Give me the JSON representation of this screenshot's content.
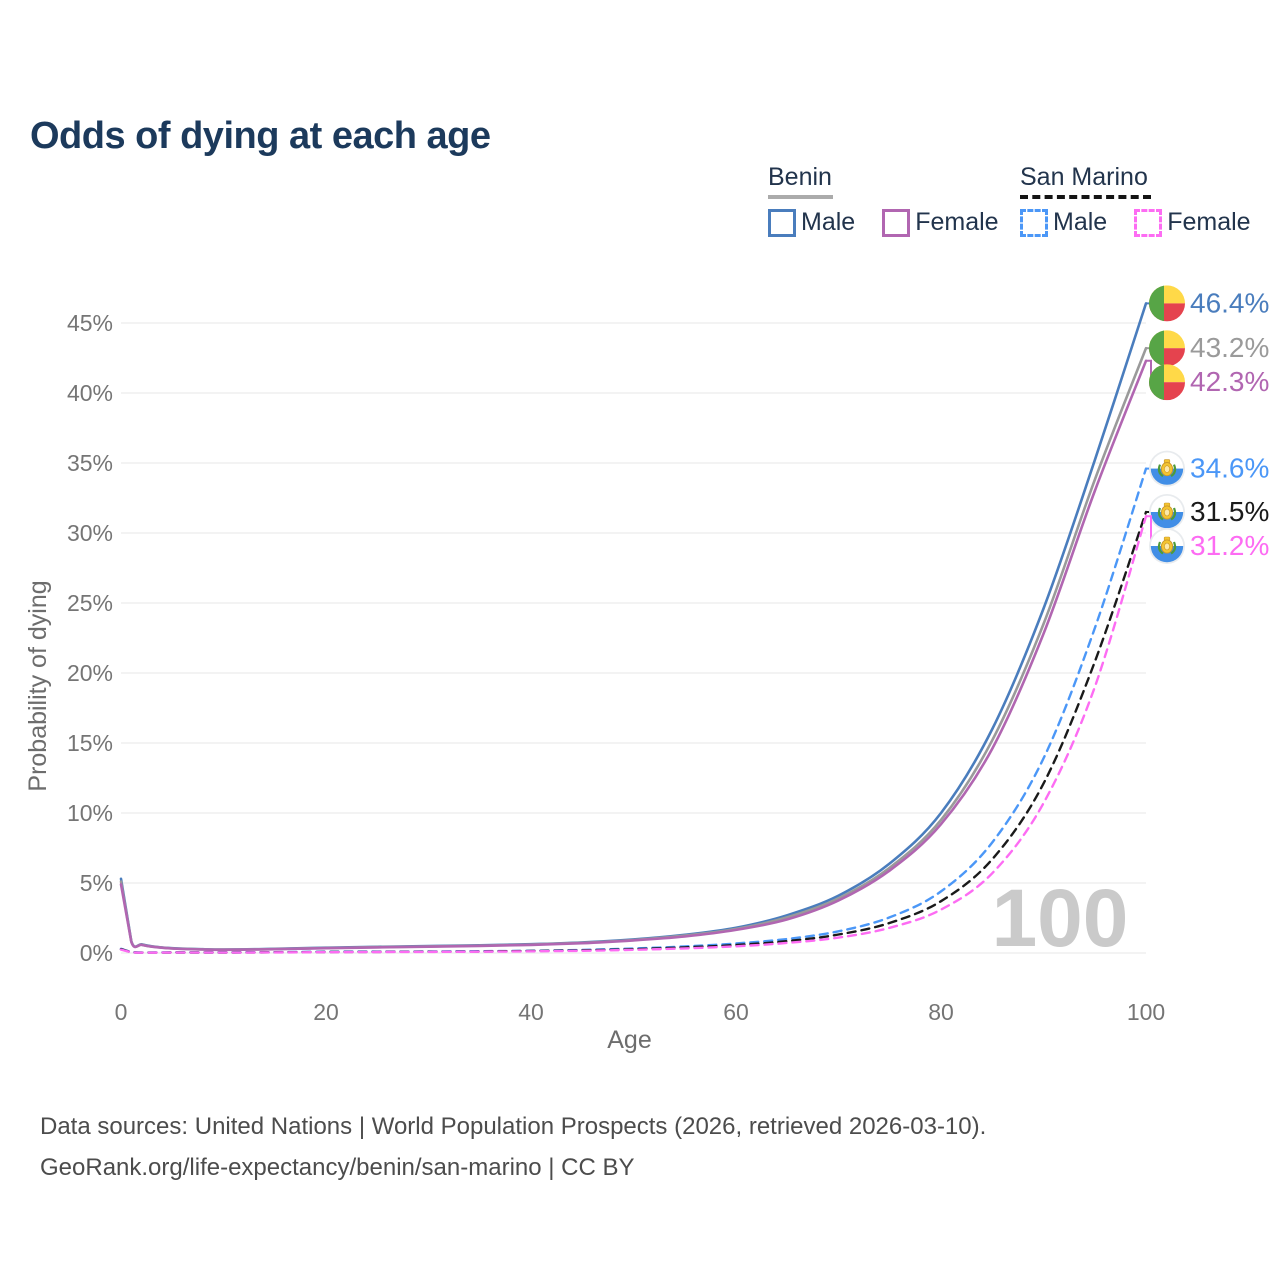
{
  "title": "Odds of dying at each age",
  "watermark_age": "100",
  "legend": {
    "groups": [
      {
        "name": "Benin",
        "line_style": "solid",
        "underline_color": "#ababab",
        "items": [
          {
            "label": "Male",
            "color": "#4a7dbd",
            "dashed": false
          },
          {
            "label": "Female",
            "color": "#b166b1",
            "dashed": false
          }
        ]
      },
      {
        "name": "San Marino",
        "line_style": "dashed",
        "underline_color": "#141414",
        "items": [
          {
            "label": "Male",
            "color": "#4b97f7",
            "dashed": true
          },
          {
            "label": "Female",
            "color": "#fd6cf3",
            "dashed": true
          }
        ]
      }
    ]
  },
  "chart_data": {
    "type": "line",
    "title": "Odds of dying at each age",
    "xlabel": "Age",
    "ylabel": "Probability of dying",
    "xlim": [
      0,
      100
    ],
    "ylim_pct": [
      0,
      47
    ],
    "x_ticks": [
      0,
      20,
      40,
      60,
      80,
      100
    ],
    "y_ticks_pct": [
      0,
      5,
      10,
      15,
      20,
      25,
      30,
      35,
      40,
      45
    ],
    "grid": "horizontal",
    "legend_position": "top-right",
    "hovered_x_value": "100",
    "series": [
      {
        "name": "Benin Male",
        "country": "Benin",
        "sex": "Male",
        "color": "#4a7dbd",
        "dash": false,
        "flag": "benin",
        "end_label": "46.4%",
        "points_pct": [
          [
            0,
            5.3
          ],
          [
            1,
            0.85
          ],
          [
            2,
            0.62
          ],
          [
            3,
            0.48
          ],
          [
            5,
            0.34
          ],
          [
            8,
            0.27
          ],
          [
            10,
            0.25
          ],
          [
            13,
            0.27
          ],
          [
            15,
            0.3
          ],
          [
            20,
            0.38
          ],
          [
            25,
            0.44
          ],
          [
            30,
            0.49
          ],
          [
            35,
            0.55
          ],
          [
            40,
            0.63
          ],
          [
            45,
            0.76
          ],
          [
            50,
            0.97
          ],
          [
            55,
            1.3
          ],
          [
            60,
            1.8
          ],
          [
            65,
            2.7
          ],
          [
            70,
            4.1
          ],
          [
            75,
            6.4
          ],
          [
            80,
            10.0
          ],
          [
            85,
            16.0
          ],
          [
            90,
            24.6
          ],
          [
            95,
            35.2
          ],
          [
            100,
            46.4
          ]
        ]
      },
      {
        "name": "Benin Both sexes",
        "country": "Benin",
        "sex": "Both",
        "color": "#9a9a9a",
        "dash": false,
        "flag": "benin",
        "end_label": "43.2%",
        "points_pct": [
          [
            0,
            5.1
          ],
          [
            1,
            0.82
          ],
          [
            2,
            0.6
          ],
          [
            3,
            0.46
          ],
          [
            5,
            0.33
          ],
          [
            8,
            0.26
          ],
          [
            10,
            0.24
          ],
          [
            13,
            0.26
          ],
          [
            15,
            0.28
          ],
          [
            20,
            0.36
          ],
          [
            25,
            0.42
          ],
          [
            30,
            0.47
          ],
          [
            35,
            0.53
          ],
          [
            40,
            0.6
          ],
          [
            45,
            0.73
          ],
          [
            50,
            0.93
          ],
          [
            55,
            1.24
          ],
          [
            60,
            1.72
          ],
          [
            65,
            2.55
          ],
          [
            70,
            3.9
          ],
          [
            75,
            6.1
          ],
          [
            80,
            9.5
          ],
          [
            85,
            15.2
          ],
          [
            90,
            23.5
          ],
          [
            95,
            33.8
          ],
          [
            100,
            43.2
          ]
        ]
      },
      {
        "name": "Benin Female",
        "country": "Benin",
        "sex": "Female",
        "color": "#b166b1",
        "dash": false,
        "flag": "benin",
        "end_label": "42.3%",
        "points_pct": [
          [
            0,
            4.9
          ],
          [
            1,
            0.8
          ],
          [
            2,
            0.58
          ],
          [
            3,
            0.45
          ],
          [
            5,
            0.32
          ],
          [
            8,
            0.25
          ],
          [
            10,
            0.23
          ],
          [
            13,
            0.25
          ],
          [
            15,
            0.27
          ],
          [
            20,
            0.34
          ],
          [
            25,
            0.4
          ],
          [
            30,
            0.45
          ],
          [
            35,
            0.51
          ],
          [
            40,
            0.58
          ],
          [
            45,
            0.7
          ],
          [
            50,
            0.9
          ],
          [
            55,
            1.18
          ],
          [
            60,
            1.65
          ],
          [
            65,
            2.4
          ],
          [
            70,
            3.75
          ],
          [
            75,
            5.9
          ],
          [
            80,
            9.2
          ],
          [
            85,
            14.6
          ],
          [
            90,
            22.8
          ],
          [
            95,
            33.0
          ],
          [
            100,
            42.3
          ]
        ]
      },
      {
        "name": "San Marino Male",
        "country": "San Marino",
        "sex": "Male",
        "color": "#4b97f7",
        "dash": true,
        "flag": "san-marino",
        "end_label": "34.6%",
        "points_pct": [
          [
            0,
            0.3
          ],
          [
            1,
            0.06
          ],
          [
            5,
            0.04
          ],
          [
            10,
            0.04
          ],
          [
            15,
            0.06
          ],
          [
            20,
            0.09
          ],
          [
            25,
            0.1
          ],
          [
            30,
            0.11
          ],
          [
            35,
            0.13
          ],
          [
            40,
            0.16
          ],
          [
            45,
            0.22
          ],
          [
            50,
            0.32
          ],
          [
            55,
            0.47
          ],
          [
            60,
            0.68
          ],
          [
            65,
            1.0
          ],
          [
            70,
            1.55
          ],
          [
            75,
            2.55
          ],
          [
            80,
            4.4
          ],
          [
            85,
            7.9
          ],
          [
            90,
            13.9
          ],
          [
            95,
            23.2
          ],
          [
            100,
            34.6
          ]
        ]
      },
      {
        "name": "San Marino Both sexes",
        "country": "San Marino",
        "sex": "Both",
        "color": "#1a1a1a",
        "dash": true,
        "flag": "san-marino",
        "end_label": "31.5%",
        "points_pct": [
          [
            0,
            0.27
          ],
          [
            1,
            0.05
          ],
          [
            5,
            0.035
          ],
          [
            10,
            0.035
          ],
          [
            15,
            0.05
          ],
          [
            20,
            0.07
          ],
          [
            25,
            0.08
          ],
          [
            30,
            0.09
          ],
          [
            35,
            0.11
          ],
          [
            40,
            0.14
          ],
          [
            45,
            0.19
          ],
          [
            50,
            0.27
          ],
          [
            55,
            0.4
          ],
          [
            60,
            0.57
          ],
          [
            65,
            0.85
          ],
          [
            70,
            1.32
          ],
          [
            75,
            2.15
          ],
          [
            80,
            3.7
          ],
          [
            85,
            6.7
          ],
          [
            90,
            12.1
          ],
          [
            95,
            20.8
          ],
          [
            100,
            31.5
          ]
        ]
      },
      {
        "name": "San Marino Female",
        "country": "San Marino",
        "sex": "Female",
        "color": "#fd6cf3",
        "dash": true,
        "flag": "san-marino",
        "end_label": "31.2%",
        "points_pct": [
          [
            0,
            0.24
          ],
          [
            1,
            0.045
          ],
          [
            5,
            0.03
          ],
          [
            10,
            0.03
          ],
          [
            15,
            0.04
          ],
          [
            20,
            0.06
          ],
          [
            25,
            0.07
          ],
          [
            30,
            0.08
          ],
          [
            35,
            0.09
          ],
          [
            40,
            0.12
          ],
          [
            45,
            0.16
          ],
          [
            50,
            0.23
          ],
          [
            55,
            0.33
          ],
          [
            60,
            0.48
          ],
          [
            65,
            0.72
          ],
          [
            70,
            1.1
          ],
          [
            75,
            1.8
          ],
          [
            80,
            3.1
          ],
          [
            85,
            5.7
          ],
          [
            90,
            10.7
          ],
          [
            95,
            19.0
          ],
          [
            100,
            31.2
          ]
        ]
      }
    ]
  },
  "footer": {
    "line1": "Data sources: United Nations | World Population Prospects (2026, retrieved 2026-03-10).",
    "line2": "GeoRank.org/life-expectancy/benin/san-marino | CC BY"
  }
}
